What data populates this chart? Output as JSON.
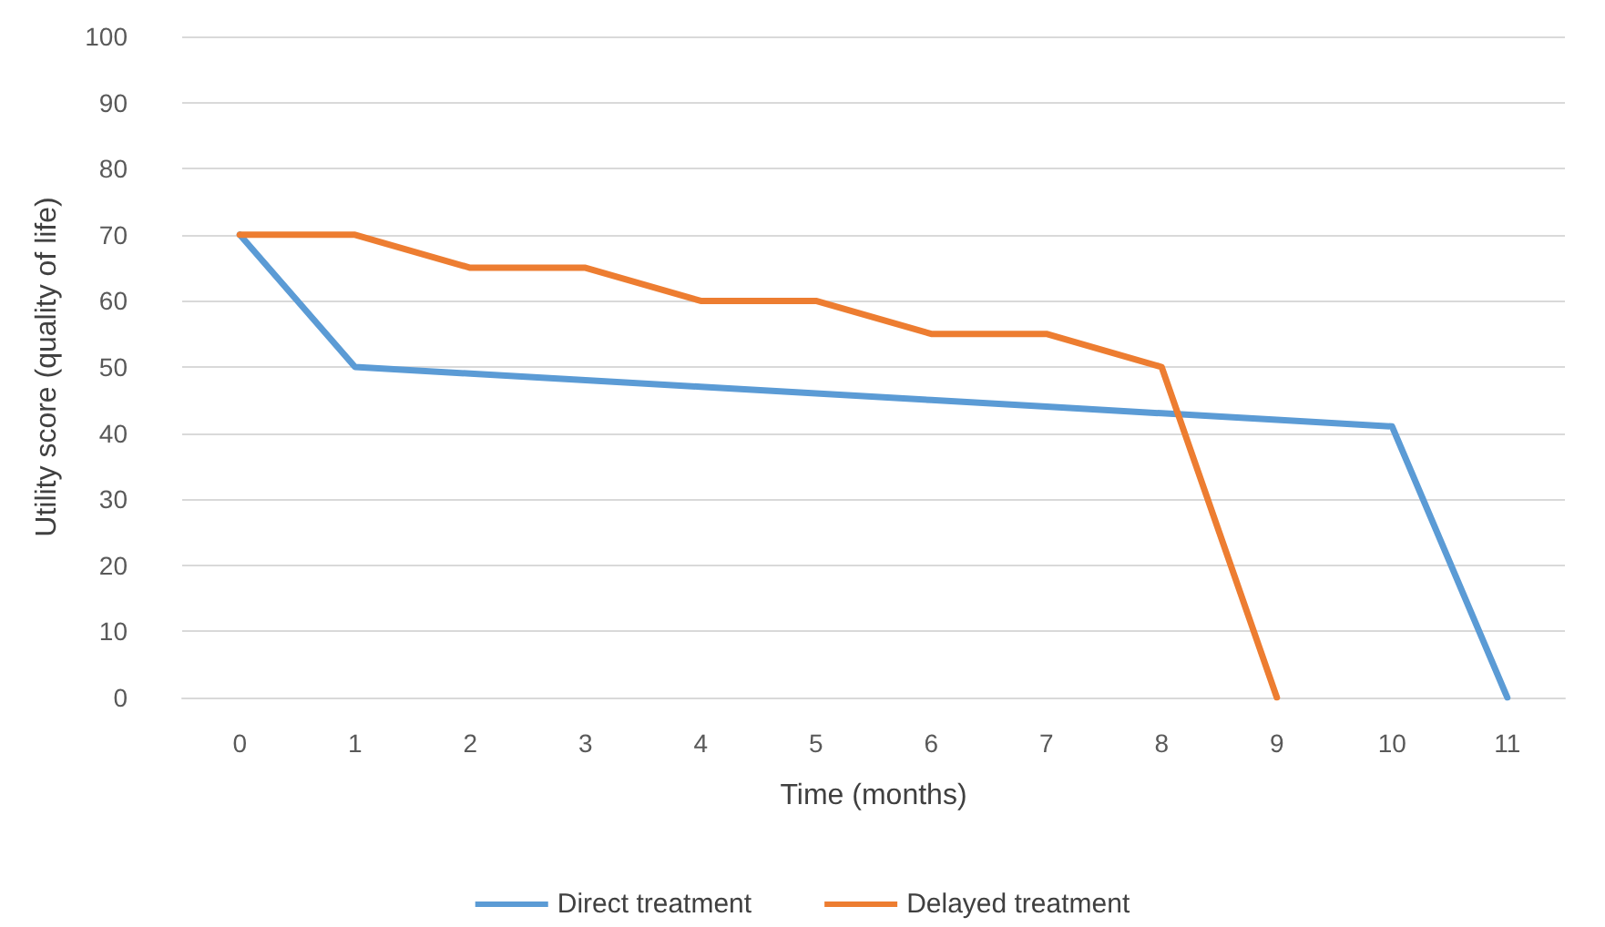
{
  "chart_data": {
    "type": "line",
    "xlabel": "Time (months)",
    "ylabel": "Utility score (quality of life)",
    "categories": [
      "0",
      "1",
      "2",
      "3",
      "4",
      "5",
      "6",
      "7",
      "8",
      "9",
      "10",
      "11"
    ],
    "series": [
      {
        "name": "Direct treatment",
        "color": "#5b9bd5",
        "values": [
          70,
          50,
          49,
          48,
          47,
          46,
          45,
          44,
          43,
          42,
          41,
          0
        ]
      },
      {
        "name": "Delayed treatment",
        "color": "#ed7d31",
        "values": [
          70,
          70,
          65,
          65,
          60,
          60,
          55,
          55,
          50,
          0,
          null,
          null
        ]
      }
    ],
    "ylim": [
      0,
      100
    ],
    "yticks": [
      0,
      10,
      20,
      30,
      40,
      50,
      60,
      70,
      80,
      90,
      100
    ],
    "grid": "y",
    "legend": "bottom",
    "marker": "none",
    "line_style": "solid"
  }
}
